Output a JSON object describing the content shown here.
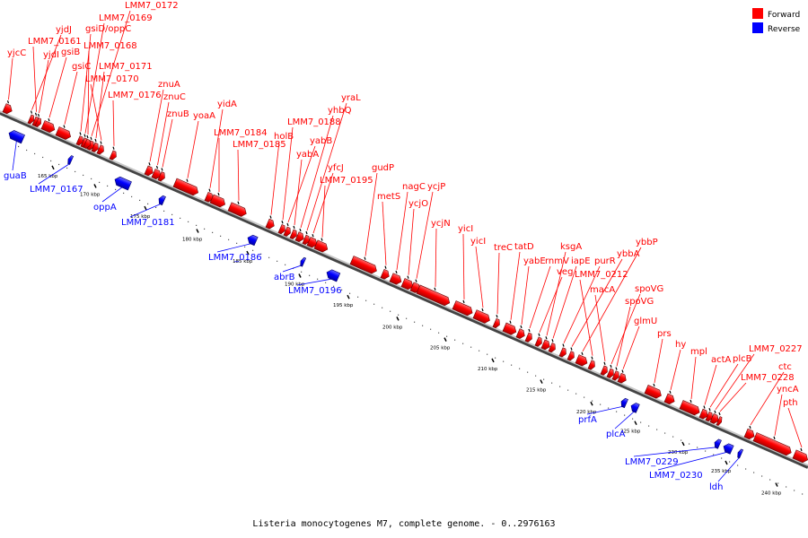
{
  "caption": "Listeria monocytogenes M7, complete genome. - 0..2976163",
  "legend": {
    "forward": {
      "label": "Forward",
      "color": "#ff0000"
    },
    "reverse": {
      "label": "Reverse",
      "color": "#0000ff"
    }
  },
  "tick_labels": [
    "165 kbp",
    "170 kbp",
    "175 kbp",
    "180 kbp",
    "185 kbp",
    "190 kbp",
    "195 kbp",
    "200 kbp",
    "205 kbp",
    "210 kbp",
    "215 kbp",
    "220 kbp",
    "225 kbp",
    "230 kbp",
    "235 kbp",
    "240 kbp"
  ],
  "forward_genes": [
    "yjcC",
    "yjdJ",
    "LMM7_0161",
    "yjdI",
    "gsiB",
    "gsiC",
    "gsiD/oppC",
    "LMM7_0169",
    "LMM7_0172",
    "LMM7_0168",
    "LMM7_0171",
    "LMM7_0170",
    "LMM7_0176",
    "znuA",
    "znuC",
    "znuB",
    "yoaA",
    "yidA",
    "LMM7_0184",
    "LMM7_0185",
    "holB",
    "LMM7_0188",
    "yabB",
    "yabA",
    "yhbQ",
    "yraL",
    "yfcJ",
    "LMM7_0195",
    "gudP",
    "metS",
    "nagC",
    "ycjO",
    "ycjP",
    "ycjN",
    "yicI",
    "yicI",
    "treC",
    "tatD",
    "yabE",
    "rnmV",
    "veg",
    "ksgA",
    "iapE",
    "purR",
    "ybbA",
    "ybbP",
    "LMM7_0212",
    "macA",
    "spoVG",
    "spoVG",
    "glmU",
    "prs",
    "hy",
    "mpl",
    "actA",
    "plcB",
    "LMM7_0227",
    "LMM7_0228",
    "ctc",
    "yncA",
    "pth"
  ],
  "reverse_genes": [
    "guaB",
    "LMM7_0167",
    "oppA",
    "LMM7_0181",
    "LMM7_0186",
    "abrB",
    "LMM7_0196",
    "prfA",
    "plcA",
    "LMM7_0229",
    "LMM7_0230",
    "ldh"
  ]
}
